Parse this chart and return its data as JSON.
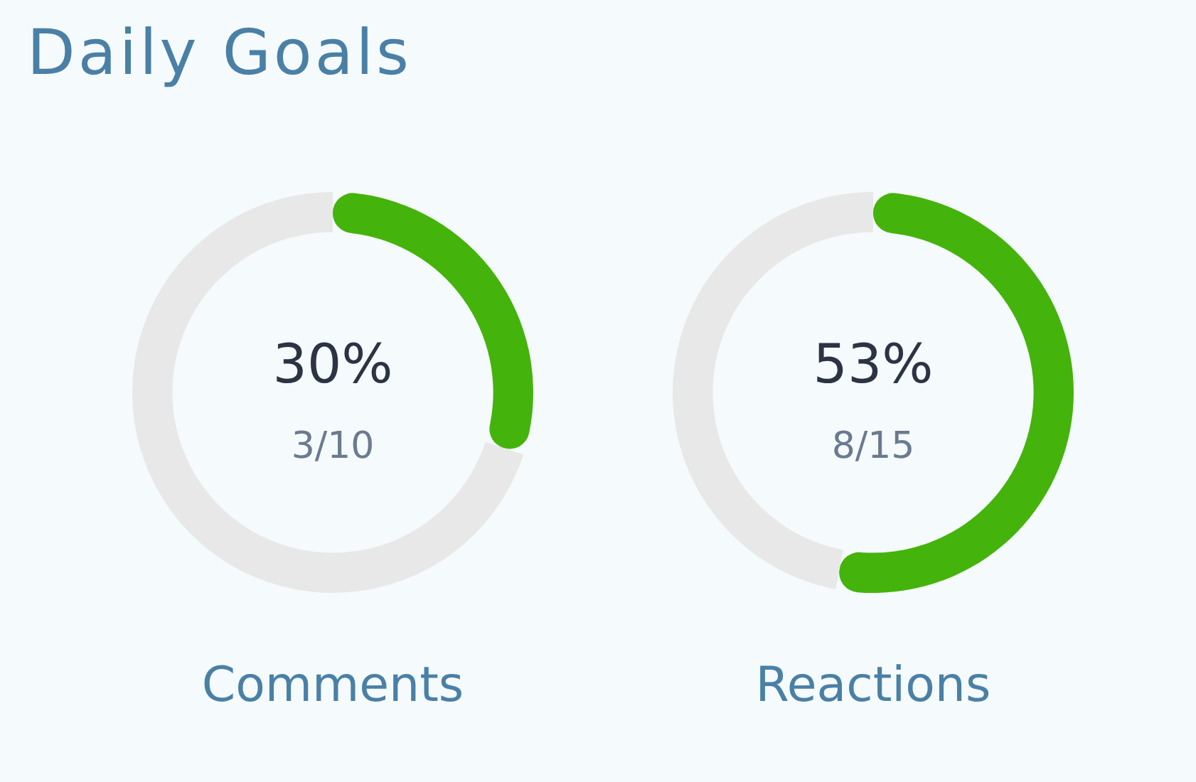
{
  "chart_data": [
    {
      "type": "other",
      "title": "Daily Goals"
    },
    {
      "type": "donut",
      "title": "Comments",
      "categories": [
        null,
        null
      ],
      "values": [
        30,
        70
      ],
      "colors": [
        "#44b30b",
        "#e8e8e8"
      ],
      "annotations": [
        "30%",
        "3/10"
      ]
    },
    {
      "type": "donut",
      "title": "Reactions",
      "categories": [
        null,
        null
      ],
      "values": [
        53,
        47
      ],
      "colors": [
        "#44b30b",
        "#e8e8e8"
      ],
      "annotations": [
        "53%",
        "8/15"
      ]
    }
  ]
}
